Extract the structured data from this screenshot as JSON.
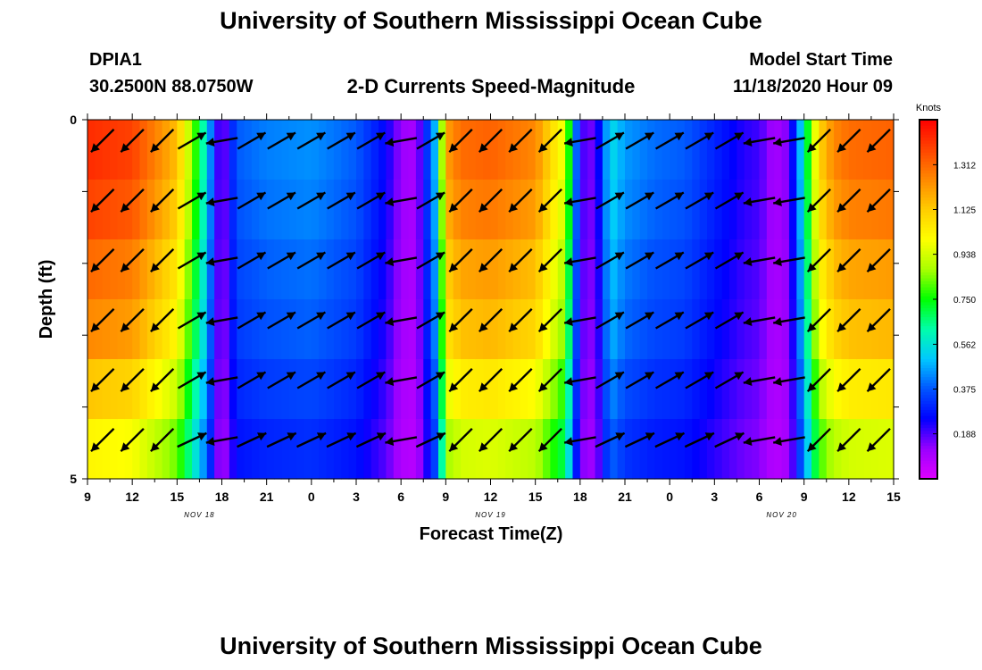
{
  "header": {
    "title": "University of Southern Mississippi Ocean Cube",
    "station_id": "DPIA1",
    "station_coords": "30.2500N 88.0750W",
    "plot_title": "2-D Currents Speed-Magnitude",
    "model_start_label": "Model Start Time",
    "model_start_value": "11/18/2020 Hour 09"
  },
  "footer": {
    "title": "University of Southern Mississippi Ocean Cube"
  },
  "chart_data": {
    "type": "heatmap",
    "xlabel": "Forecast Time(Z)",
    "ylabel": "Depth (ft)",
    "x_tick_labels": [
      "9",
      "12",
      "15",
      "18",
      "21",
      "0",
      "3",
      "6",
      "9",
      "12",
      "15",
      "18",
      "21",
      "0",
      "3",
      "6",
      "9",
      "12",
      "15"
    ],
    "x_hours_from_start": [
      0,
      3,
      6,
      9,
      12,
      15,
      18,
      21,
      24,
      27,
      30,
      33,
      36,
      39,
      42,
      45,
      48,
      51,
      54
    ],
    "date_labels": [
      {
        "text": "NOV 18",
        "hour": 7.5
      },
      {
        "text": "NOV 19",
        "hour": 27
      },
      {
        "text": "NOV 20",
        "hour": 46.5
      }
    ],
    "y_tick_labels": [
      "0",
      "5"
    ],
    "ylim": [
      0,
      5
    ],
    "xlim": [
      0,
      54
    ],
    "colorbar": {
      "unit": "Knots",
      "min": 0,
      "max": 1.5,
      "tick_labels": [
        "1.312",
        "1.125",
        "0.938",
        "0.750",
        "0.562",
        "0.375",
        "0.188"
      ],
      "tick_values": [
        1.312,
        1.125,
        0.938,
        0.75,
        0.562,
        0.375,
        0.188
      ],
      "colors": [
        "#e000ff",
        "#9900ff",
        "#0000ff",
        "#0055ff",
        "#00c8ff",
        "#00ffaa",
        "#00ff00",
        "#aaff00",
        "#ffff00",
        "#ffcc00",
        "#ff8800",
        "#ff4400",
        "#ff0000"
      ]
    },
    "speed_profile": {
      "hours": [
        0,
        3,
        6,
        7,
        8,
        8.5,
        9,
        9.3,
        10,
        12,
        15,
        18,
        20,
        21,
        22,
        23.5,
        24,
        25,
        27,
        30,
        32,
        33,
        34,
        35,
        36,
        38,
        40,
        42,
        44,
        45,
        46,
        47,
        48,
        49,
        50,
        51,
        54
      ],
      "surface": [
        1.42,
        1.38,
        1.15,
        0.85,
        0.55,
        0.3,
        0.1,
        0.2,
        0.38,
        0.42,
        0.44,
        0.38,
        0.25,
        0.12,
        0.1,
        0.55,
        1.2,
        1.3,
        1.32,
        1.25,
        0.95,
        0.2,
        0.15,
        0.55,
        0.45,
        0.4,
        0.38,
        0.3,
        0.22,
        0.2,
        0.1,
        0.15,
        0.6,
        1.1,
        1.25,
        1.3,
        1.32
      ],
      "depth_factor": [
        1.0,
        0.97,
        0.92,
        0.88,
        0.8,
        0.72
      ]
    },
    "arrow_columns": [
      1,
      3,
      5,
      7,
      9,
      11,
      13,
      15,
      17,
      19,
      21,
      23,
      25,
      27,
      29,
      31,
      33,
      35,
      37,
      39,
      41,
      43,
      45,
      47,
      49,
      51,
      53
    ],
    "arrows": [
      {
        "hour": 1,
        "levels": [
          [
            135,
            1
          ],
          [
            135,
            1
          ],
          [
            135,
            1
          ],
          [
            135,
            1
          ],
          [
            135,
            1
          ],
          [
            135,
            1
          ]
        ]
      }
    ]
  }
}
